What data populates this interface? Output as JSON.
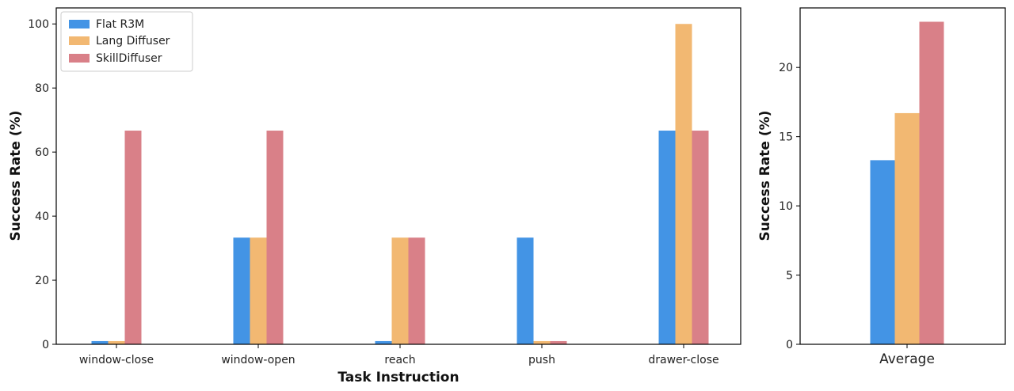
{
  "chart_data": [
    {
      "type": "bar",
      "title": "",
      "xlabel": "Task Instruction",
      "ylabel": "Success Rate (%)",
      "ylim": [
        0,
        105
      ],
      "yticks": [
        0,
        20,
        40,
        60,
        80,
        100
      ],
      "categories": [
        "window-close",
        "window-open",
        "reach",
        "push",
        "drawer-close"
      ],
      "series": [
        {
          "name": "Flat R3M",
          "color": "#4394e5",
          "values": [
            1,
            33.3,
            1,
            33.3,
            66.7
          ]
        },
        {
          "name": "Lang Diffuser",
          "color": "#f2b872",
          "values": [
            1,
            33.3,
            33.3,
            1,
            100
          ]
        },
        {
          "name": "SkillDiffuser",
          "color": "#d98088",
          "values": [
            66.7,
            66.7,
            33.3,
            1,
            66.7
          ]
        }
      ],
      "legend": "top-left",
      "grid": false
    },
    {
      "type": "bar",
      "title": "",
      "xlabel": "",
      "ylabel": "Success Rate (%)",
      "ylim": [
        0,
        24.3
      ],
      "yticks": [
        0,
        5,
        10,
        15,
        20
      ],
      "categories": [
        "Average"
      ],
      "series": [
        {
          "name": "Flat R3M",
          "color": "#4394e5",
          "values": [
            13.3
          ]
        },
        {
          "name": "Lang Diffuser",
          "color": "#f2b872",
          "values": [
            16.7
          ]
        },
        {
          "name": "SkillDiffuser",
          "color": "#d98088",
          "values": [
            23.3
          ]
        }
      ],
      "grid": false
    }
  ]
}
